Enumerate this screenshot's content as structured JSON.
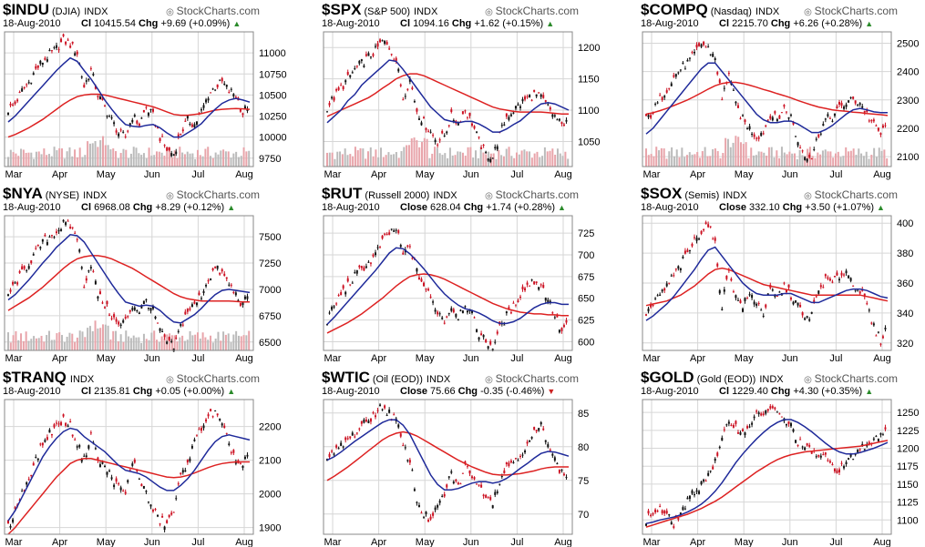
{
  "chart_data": [
    {
      "type": "line",
      "symbol": "$INDU",
      "subtitle": "(DJIA)",
      "exchange": "INDX",
      "brand": "StockCharts.com",
      "date": "18-Aug-2010",
      "close_label": "Cl",
      "close": "10415.54",
      "chg_label": "Chg",
      "chg": "+9.69 (+0.09%)",
      "direction": "up",
      "x_labels": [
        "Mar",
        "Apr",
        "May",
        "Jun",
        "Jul",
        "Aug"
      ],
      "y_ticks": [
        9750,
        10000,
        10250,
        10500,
        10750,
        11000
      ],
      "ylim": [
        9650,
        11250
      ],
      "volume": true,
      "price": [
        10325,
        10400,
        10550,
        10650,
        10800,
        10900,
        10980,
        11050,
        11150,
        11100,
        11000,
        10600,
        10800,
        10500,
        10350,
        10200,
        10050,
        10000,
        10250,
        10150,
        10350,
        10250,
        10000,
        9850,
        9800,
        10050,
        10200,
        10150,
        10300,
        10500,
        10600,
        10650,
        10550,
        10500,
        10280,
        10415
      ],
      "sma50": [
        10180,
        10250,
        10340,
        10430,
        10520,
        10610,
        10700,
        10790,
        10870,
        10940,
        10900,
        10790,
        10690,
        10570,
        10440,
        10330,
        10230,
        10150,
        10130,
        10120,
        10140,
        10150,
        10110,
        10050,
        10000,
        10000,
        10050,
        10100,
        10160,
        10250,
        10330,
        10400,
        10440,
        10460,
        10440,
        10415
      ],
      "sma200": [
        10000,
        10030,
        10070,
        10110,
        10160,
        10210,
        10270,
        10330,
        10390,
        10440,
        10480,
        10500,
        10510,
        10510,
        10500,
        10480,
        10460,
        10440,
        10420,
        10400,
        10380,
        10360,
        10330,
        10300,
        10270,
        10260,
        10260,
        10270,
        10280,
        10300,
        10320,
        10330,
        10335,
        10340,
        10335,
        10330
      ]
    },
    {
      "type": "line",
      "symbol": "$SPX",
      "subtitle": "(S&P 500)",
      "exchange": "INDX",
      "brand": "StockCharts.com",
      "date": "18-Aug-2010",
      "close_label": "Cl",
      "close": "1094.16",
      "chg_label": "Chg",
      "chg": "+1.62 (+0.15%)",
      "direction": "up",
      "x_labels": [
        "Mar",
        "Apr",
        "May",
        "Jun",
        "Jul",
        "Aug"
      ],
      "y_ticks": [
        1050,
        1100,
        1150,
        1200
      ],
      "ylim": [
        1010,
        1225
      ],
      "volume": true,
      "price": [
        1105,
        1120,
        1135,
        1150,
        1165,
        1175,
        1185,
        1195,
        1210,
        1200,
        1180,
        1120,
        1150,
        1100,
        1080,
        1065,
        1050,
        1060,
        1090,
        1080,
        1100,
        1080,
        1050,
        1030,
        1025,
        1060,
        1090,
        1100,
        1110,
        1120,
        1125,
        1120,
        1105,
        1090,
        1075,
        1094
      ],
      "sma50": [
        1080,
        1090,
        1100,
        1115,
        1125,
        1140,
        1150,
        1160,
        1170,
        1180,
        1178,
        1165,
        1150,
        1135,
        1120,
        1105,
        1095,
        1085,
        1082,
        1080,
        1082,
        1082,
        1078,
        1072,
        1065,
        1065,
        1070,
        1077,
        1083,
        1093,
        1102,
        1110,
        1112,
        1110,
        1105,
        1100
      ],
      "sma200": [
        1090,
        1095,
        1100,
        1105,
        1110,
        1115,
        1120,
        1127,
        1135,
        1142,
        1150,
        1155,
        1158,
        1158,
        1155,
        1150,
        1145,
        1140,
        1135,
        1130,
        1125,
        1120,
        1115,
        1110,
        1105,
        1102,
        1100,
        1098,
        1097,
        1097,
        1097,
        1097,
        1096,
        1095,
        1094,
        1094
      ]
    },
    {
      "type": "line",
      "symbol": "$COMPQ",
      "subtitle": "(Nasdaq)",
      "exchange": "INDX",
      "brand": "StockCharts.com",
      "date": "18-Aug-2010",
      "close_label": "Cl",
      "close": "2215.70",
      "chg_label": "Chg",
      "chg": "+6.26 (+0.28%)",
      "direction": "up",
      "x_labels": [
        "Mar",
        "Apr",
        "May",
        "Jun",
        "Jul",
        "Aug"
      ],
      "y_ticks": [
        2100,
        2200,
        2300,
        2400,
        2500
      ],
      "ylim": [
        2065,
        2540
      ],
      "volume": true,
      "price": [
        2230,
        2260,
        2300,
        2340,
        2380,
        2410,
        2430,
        2460,
        2500,
        2480,
        2450,
        2300,
        2400,
        2280,
        2230,
        2200,
        2170,
        2190,
        2250,
        2230,
        2270,
        2240,
        2150,
        2110,
        2100,
        2180,
        2230,
        2240,
        2270,
        2290,
        2300,
        2290,
        2250,
        2210,
        2180,
        2215
      ],
      "sma50": [
        2180,
        2200,
        2230,
        2260,
        2290,
        2320,
        2350,
        2380,
        2410,
        2430,
        2430,
        2400,
        2370,
        2340,
        2310,
        2280,
        2250,
        2230,
        2220,
        2220,
        2225,
        2225,
        2215,
        2200,
        2185,
        2185,
        2195,
        2210,
        2230,
        2250,
        2265,
        2270,
        2265,
        2258,
        2255,
        2255
      ],
      "sma200": [
        2250,
        2255,
        2262,
        2270,
        2280,
        2290,
        2300,
        2312,
        2325,
        2338,
        2350,
        2358,
        2362,
        2362,
        2358,
        2352,
        2345,
        2337,
        2330,
        2322,
        2315,
        2307,
        2298,
        2290,
        2282,
        2275,
        2270,
        2265,
        2262,
        2260,
        2257,
        2255,
        2252,
        2250,
        2248,
        2245
      ]
    },
    {
      "type": "line",
      "symbol": "$NYA",
      "subtitle": "(NYSE)",
      "exchange": "INDX",
      "brand": "StockCharts.com",
      "date": "18-Aug-2010",
      "close_label": "Cl",
      "close": "6968.08",
      "chg_label": "Chg",
      "chg": "+8.29 (+0.12%)",
      "direction": "up",
      "x_labels": [
        "Mar",
        "Apr",
        "May",
        "Jun",
        "Jul",
        "Aug"
      ],
      "y_ticks": [
        6500,
        6750,
        7000,
        7250,
        7500
      ],
      "ylim": [
        6420,
        7700
      ],
      "volume": true,
      "price": [
        6950,
        7050,
        7150,
        7250,
        7350,
        7450,
        7500,
        7550,
        7620,
        7600,
        7500,
        7050,
        7250,
        6950,
        6850,
        6750,
        6650,
        6700,
        6850,
        6800,
        6900,
        6800,
        6600,
        6500,
        6450,
        6650,
        6800,
        6850,
        6950,
        7100,
        7200,
        7150,
        7050,
        6950,
        6850,
        6968
      ],
      "sma50": [
        6900,
        6950,
        7020,
        7090,
        7170,
        7250,
        7320,
        7400,
        7460,
        7520,
        7510,
        7450,
        7350,
        7250,
        7150,
        7050,
        6960,
        6880,
        6860,
        6840,
        6850,
        6840,
        6800,
        6740,
        6690,
        6680,
        6720,
        6760,
        6820,
        6890,
        6950,
        6990,
        7000,
        6990,
        6980,
        6970
      ],
      "sma200": [
        6800,
        6840,
        6880,
        6920,
        6970,
        7020,
        7080,
        7140,
        7200,
        7250,
        7290,
        7310,
        7320,
        7320,
        7310,
        7290,
        7260,
        7230,
        7200,
        7160,
        7120,
        7080,
        7040,
        7000,
        6960,
        6930,
        6910,
        6900,
        6890,
        6890,
        6890,
        6890,
        6890,
        6885,
        6880,
        6880
      ]
    },
    {
      "type": "line",
      "symbol": "$RUT",
      "subtitle": "(Russell 2000)",
      "exchange": "INDX",
      "brand": "StockCharts.com",
      "date": "18-Aug-2010",
      "close_label": "Close",
      "close": "628.04",
      "chg_label": "Chg",
      "chg": "+1.74 (+0.28%)",
      "direction": "up",
      "x_labels": [
        "Mar",
        "Apr",
        "May",
        "Jun",
        "Jul",
        "Aug"
      ],
      "y_ticks": [
        600,
        625,
        650,
        675,
        700,
        725
      ],
      "ylim": [
        590,
        745
      ],
      "volume": false,
      "price": [
        625,
        640,
        655,
        665,
        675,
        685,
        690,
        700,
        715,
        725,
        730,
        700,
        710,
        680,
        665,
        650,
        635,
        625,
        640,
        630,
        645,
        630,
        610,
        600,
        595,
        615,
        630,
        640,
        655,
        665,
        670,
        665,
        650,
        630,
        610,
        628
      ],
      "sma50": [
        620,
        628,
        637,
        646,
        655,
        664,
        673,
        682,
        692,
        702,
        708,
        707,
        701,
        693,
        684,
        674,
        664,
        655,
        648,
        642,
        638,
        636,
        633,
        629,
        624,
        621,
        621,
        623,
        627,
        633,
        639,
        643,
        645,
        645,
        643,
        643
      ],
      "sma200": [
        610,
        614,
        618,
        622,
        627,
        632,
        638,
        644,
        650,
        657,
        664,
        670,
        675,
        677,
        678,
        677,
        675,
        672,
        668,
        664,
        660,
        656,
        652,
        648,
        644,
        641,
        638,
        636,
        634,
        633,
        632,
        632,
        631,
        631,
        630,
        630
      ]
    },
    {
      "type": "line",
      "symbol": "$SOX",
      "subtitle": "(Semis)",
      "exchange": "INDX",
      "brand": "StockCharts.com",
      "date": "18-Aug-2010",
      "close_label": "Close",
      "close": "332.10",
      "chg_label": "Chg",
      "chg": "+3.50 (+1.07%)",
      "direction": "up",
      "x_labels": [
        "Mar",
        "Apr",
        "May",
        "Jun",
        "Jul",
        "Aug"
      ],
      "y_ticks": [
        320,
        340,
        360,
        380,
        400
      ],
      "ylim": [
        315,
        405
      ],
      "volume": false,
      "price": [
        340,
        345,
        352,
        358,
        365,
        372,
        380,
        388,
        395,
        400,
        385,
        345,
        370,
        350,
        345,
        352,
        348,
        340,
        355,
        350,
        358,
        352,
        345,
        335,
        340,
        355,
        362,
        360,
        365,
        368,
        360,
        355,
        345,
        330,
        322,
        332
      ],
      "sma50": [
        335,
        338,
        342,
        346,
        351,
        357,
        363,
        369,
        376,
        382,
        384,
        378,
        372,
        366,
        360,
        356,
        353,
        352,
        352,
        352,
        353,
        353,
        351,
        349,
        347,
        347,
        349,
        351,
        353,
        355,
        356,
        356,
        355,
        353,
        351,
        350
      ],
      "sma200": [
        345,
        346,
        347,
        348,
        350,
        352,
        355,
        358,
        362,
        366,
        369,
        370,
        369,
        367,
        365,
        363,
        361,
        359,
        358,
        357,
        356,
        355,
        354,
        353,
        352,
        352,
        352,
        352,
        352,
        352,
        352,
        352,
        351,
        350,
        349,
        348
      ]
    },
    {
      "type": "line",
      "symbol": "$TRANQ",
      "subtitle": "",
      "exchange": "INDX",
      "brand": "StockCharts.com",
      "date": "18-Aug-2010",
      "close_label": "Cl",
      "close": "2135.81",
      "chg_label": "Chg",
      "chg": "+0.05 (+0.00%)",
      "direction": "up",
      "x_labels": [
        "Mar",
        "Apr",
        "May",
        "Jun",
        "Jul",
        "Aug"
      ],
      "y_ticks": [
        1900,
        2000,
        2100,
        2200
      ],
      "ylim": [
        1880,
        2280
      ],
      "volume": false,
      "price": [
        1900,
        1950,
        2000,
        2050,
        2100,
        2150,
        2180,
        2200,
        2220,
        2200,
        2150,
        2100,
        2180,
        2100,
        2080,
        2050,
        2020,
        2000,
        2100,
        2050,
        2000,
        1950,
        1920,
        1910,
        1950,
        2050,
        2100,
        2150,
        2200,
        2230,
        2240,
        2200,
        2150,
        2100,
        2080,
        2135
      ],
      "sma50": [
        1920,
        1950,
        1990,
        2030,
        2070,
        2110,
        2140,
        2165,
        2185,
        2195,
        2190,
        2170,
        2155,
        2140,
        2125,
        2105,
        2085,
        2070,
        2065,
        2060,
        2050,
        2035,
        2020,
        2010,
        2010,
        2025,
        2045,
        2070,
        2100,
        2130,
        2155,
        2170,
        2175,
        2170,
        2165,
        2160
      ],
      "sma200": [
        1880,
        1900,
        1925,
        1950,
        1975,
        2000,
        2025,
        2050,
        2070,
        2090,
        2100,
        2105,
        2105,
        2100,
        2095,
        2090,
        2085,
        2080,
        2075,
        2070,
        2065,
        2060,
        2055,
        2050,
        2048,
        2050,
        2055,
        2062,
        2070,
        2078,
        2085,
        2090,
        2093,
        2095,
        2095,
        2095
      ]
    },
    {
      "type": "line",
      "symbol": "$WTIC",
      "subtitle": "(Oil (EOD))",
      "exchange": "INDX",
      "brand": "StockCharts.com",
      "date": "18-Aug-2010",
      "close_label": "Close",
      "close": "75.66",
      "chg_label": "Chg",
      "chg": "-0.35 (-0.46%)",
      "direction": "down",
      "x_labels": [
        "Mar",
        "Apr",
        "May",
        "Jun",
        "Jul",
        "Aug"
      ],
      "y_ticks": [
        70,
        75,
        80,
        85
      ],
      "ylim": [
        67,
        87
      ],
      "volume": false,
      "price": [
        78,
        79,
        80,
        81,
        82,
        83,
        84,
        85,
        86,
        85,
        84,
        80,
        78,
        72,
        70,
        69,
        71,
        73,
        76,
        74,
        77,
        76,
        74,
        73,
        72,
        75,
        77,
        78,
        79,
        80,
        82,
        83,
        81,
        78,
        76,
        75.66
      ],
      "sma50": [
        78,
        78.5,
        79.2,
        80,
        80.8,
        81.5,
        82.2,
        82.9,
        83.6,
        84,
        84,
        83.2,
        81.8,
        79.8,
        77.8,
        75.8,
        74.4,
        73.6,
        73.6,
        73.8,
        74.2,
        74.6,
        74.8,
        74.8,
        74.6,
        74.8,
        75.3,
        76,
        76.8,
        77.5,
        78.3,
        79,
        79.3,
        79.2,
        78.9,
        78.6
      ],
      "sma200": [
        75,
        75.6,
        76.3,
        77,
        77.8,
        78.6,
        79.4,
        80.2,
        81,
        81.6,
        82,
        82.2,
        82,
        81.6,
        81,
        80.4,
        79.8,
        79.2,
        78.6,
        78,
        77.5,
        77,
        76.6,
        76.2,
        75.9,
        75.8,
        75.8,
        75.9,
        76,
        76.2,
        76.4,
        76.7,
        76.9,
        77,
        77,
        77
      ]
    },
    {
      "type": "line",
      "symbol": "$GOLD",
      "subtitle": "(Gold (EOD))",
      "exchange": "INDX",
      "brand": "StockCharts.com",
      "date": "18-Aug-2010",
      "close_label": "Cl",
      "close": "1229.40",
      "chg_label": "Chg",
      "chg": "+4.30 (+0.35%)",
      "direction": "up",
      "x_labels": [
        "Mar",
        "Apr",
        "May",
        "Jun",
        "Jul",
        "Aug"
      ],
      "y_ticks": [
        1100,
        1125,
        1150,
        1175,
        1200,
        1225,
        1250
      ],
      "ylim": [
        1080,
        1268
      ],
      "volume": false,
      "price": [
        1100,
        1110,
        1115,
        1105,
        1095,
        1110,
        1125,
        1140,
        1150,
        1165,
        1180,
        1210,
        1240,
        1230,
        1220,
        1235,
        1245,
        1250,
        1255,
        1248,
        1240,
        1230,
        1210,
        1200,
        1195,
        1190,
        1185,
        1175,
        1170,
        1180,
        1190,
        1200,
        1205,
        1215,
        1220,
        1229.4
      ],
      "sma50": [
        1095,
        1097,
        1100,
        1102,
        1104,
        1107,
        1111,
        1116,
        1122,
        1130,
        1140,
        1152,
        1166,
        1180,
        1192,
        1203,
        1213,
        1222,
        1230,
        1236,
        1240,
        1240,
        1236,
        1230,
        1223,
        1215,
        1207,
        1200,
        1195,
        1192,
        1192,
        1194,
        1197,
        1200,
        1204,
        1208
      ],
      "sma200": [
        1090,
        1093,
        1096,
        1099,
        1102,
        1105,
        1108,
        1112,
        1116,
        1121,
        1126,
        1132,
        1139,
        1146,
        1153,
        1160,
        1167,
        1173,
        1179,
        1184,
        1188,
        1191,
        1193,
        1195,
        1196,
        1197,
        1198,
        1199,
        1200,
        1201,
        1202,
        1203,
        1205,
        1207,
        1209,
        1211
      ]
    }
  ],
  "colors": {
    "up": "#111111",
    "down": "#cc1122",
    "sma50": "#1f2a9a",
    "sma200": "#dd2222",
    "vol_up": "#bbbbbb",
    "vol_down": "#e8a4aa",
    "grid": "#d6d6d6",
    "frame": "#888888"
  }
}
